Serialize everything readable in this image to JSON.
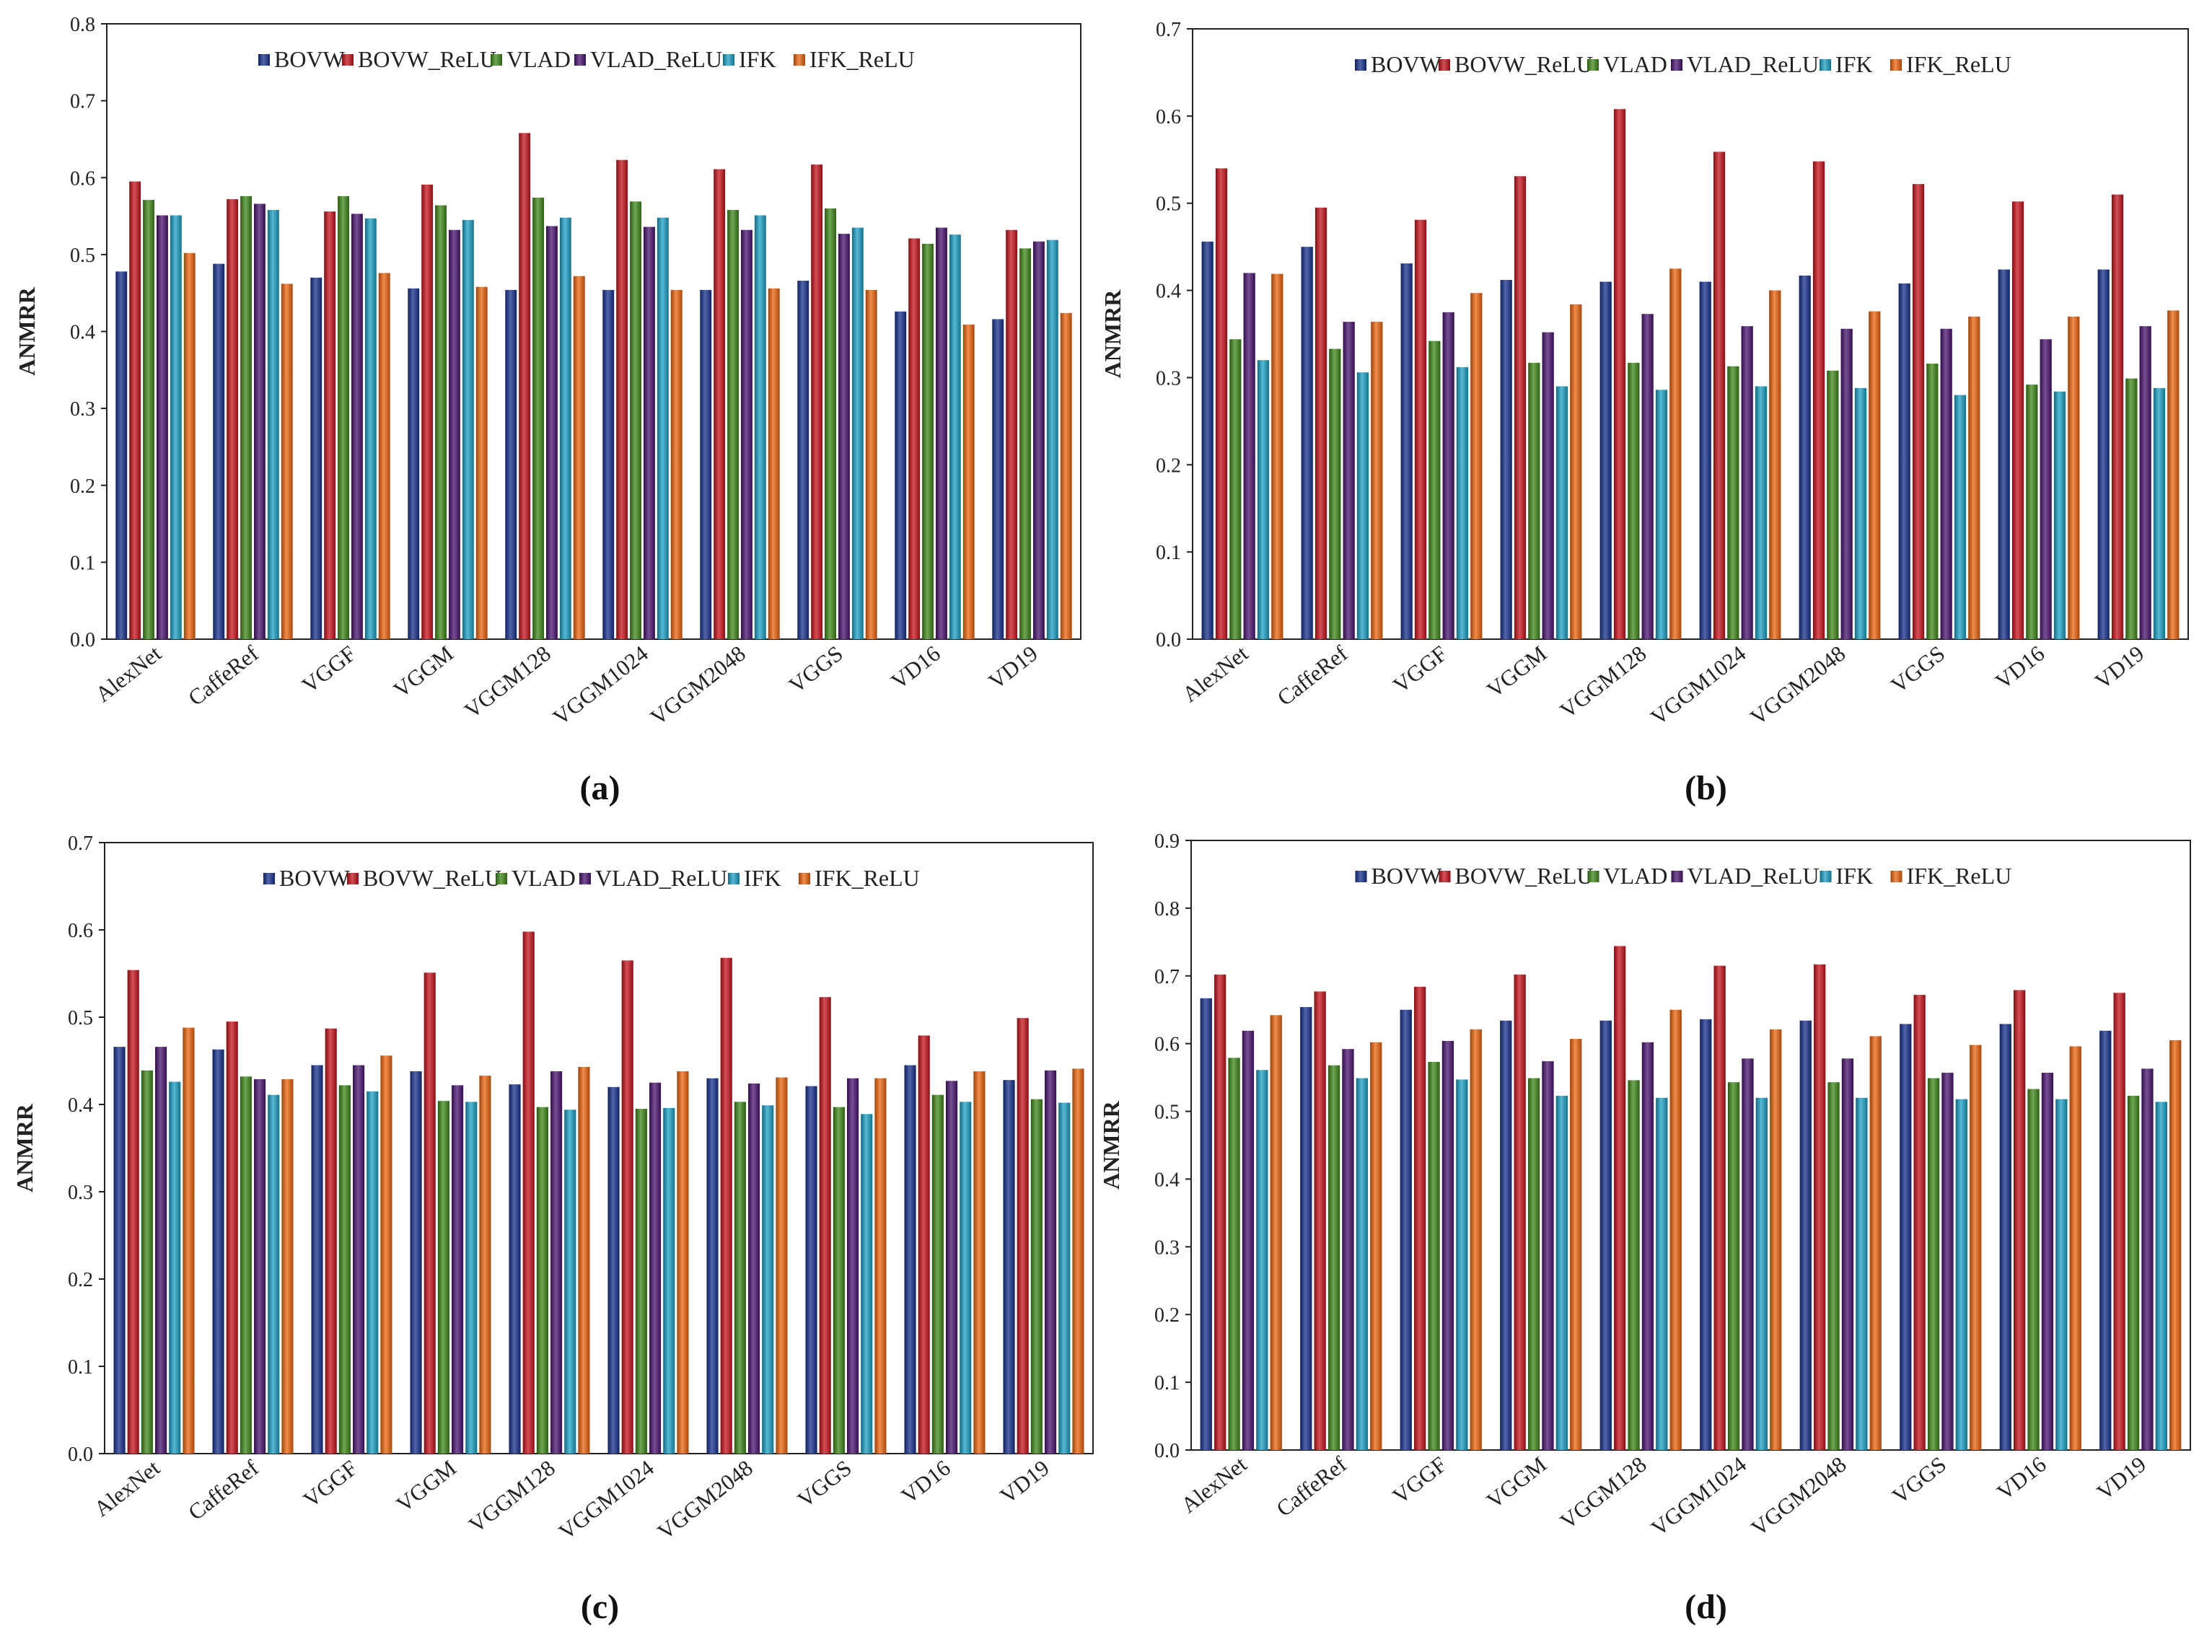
{
  "colors": {
    "BOVW": "#17318f",
    "BOVW_ReLU": "#c8141c",
    "VLAD": "#3f8a1a",
    "VLAD_ReLU": "#4a1470",
    "IFK": "#1ca3c8",
    "IFK_ReLU": "#f0650e"
  },
  "chart_data": [
    {
      "type": "bar",
      "panel_label": "(a)",
      "ylabel": "ANMRR",
      "xlabel": "",
      "ylim": [
        0,
        0.8
      ],
      "yticks": [
        "0.0",
        "0.1",
        "0.2",
        "0.3",
        "0.4",
        "0.5",
        "0.6",
        "0.7",
        "0.8"
      ],
      "legend": "top",
      "categories": [
        "AlexNet",
        "CaffeRef",
        "VGGF",
        "VGGM",
        "VGGM128",
        "VGGM1024",
        "VGGM2048",
        "VGGS",
        "VD16",
        "VD19"
      ],
      "series": [
        {
          "name": "BOVW",
          "values": [
            0.478,
            0.488,
            0.47,
            0.456,
            0.454,
            0.454,
            0.454,
            0.466,
            0.426,
            0.416
          ]
        },
        {
          "name": "BOVW_ReLU",
          "values": [
            0.595,
            0.572,
            0.556,
            0.591,
            0.658,
            0.623,
            0.611,
            0.617,
            0.521,
            0.532
          ]
        },
        {
          "name": "VLAD",
          "values": [
            0.571,
            0.576,
            0.576,
            0.564,
            0.574,
            0.569,
            0.558,
            0.56,
            0.514,
            0.508
          ]
        },
        {
          "name": "VLAD_ReLU",
          "values": [
            0.551,
            0.566,
            0.553,
            0.532,
            0.537,
            0.536,
            0.532,
            0.527,
            0.535,
            0.517
          ]
        },
        {
          "name": "IFK",
          "values": [
            0.551,
            0.558,
            0.547,
            0.545,
            0.548,
            0.548,
            0.551,
            0.535,
            0.526,
            0.519
          ]
        },
        {
          "name": "IFK_ReLU",
          "values": [
            0.502,
            0.462,
            0.476,
            0.458,
            0.472,
            0.454,
            0.456,
            0.454,
            0.409,
            0.424
          ]
        }
      ]
    },
    {
      "type": "bar",
      "panel_label": "(b)",
      "ylabel": "ANMRR",
      "xlabel": "",
      "ylim": [
        0,
        0.7
      ],
      "yticks": [
        "0.0",
        "0.1",
        "0.2",
        "0.3",
        "0.4",
        "0.5",
        "0.6",
        "0.7"
      ],
      "legend": "top",
      "categories": [
        "AlexNet",
        "CaffeRef",
        "VGGF",
        "VGGM",
        "VGGM128",
        "VGGM1024",
        "VGGM2048",
        "VGGS",
        "VD16",
        "VD19"
      ],
      "series": [
        {
          "name": "BOVW",
          "values": [
            0.456,
            0.45,
            0.431,
            0.412,
            0.41,
            0.41,
            0.417,
            0.408,
            0.424,
            0.424
          ]
        },
        {
          "name": "BOVW_ReLU",
          "values": [
            0.54,
            0.495,
            0.481,
            0.531,
            0.608,
            0.559,
            0.548,
            0.522,
            0.502,
            0.51
          ]
        },
        {
          "name": "VLAD",
          "values": [
            0.344,
            0.333,
            0.342,
            0.317,
            0.317,
            0.313,
            0.308,
            0.316,
            0.292,
            0.299
          ]
        },
        {
          "name": "VLAD_ReLU",
          "values": [
            0.42,
            0.364,
            0.375,
            0.352,
            0.373,
            0.359,
            0.356,
            0.356,
            0.344,
            0.359
          ]
        },
        {
          "name": "IFK",
          "values": [
            0.32,
            0.306,
            0.312,
            0.29,
            0.286,
            0.29,
            0.288,
            0.28,
            0.284,
            0.288
          ]
        },
        {
          "name": "IFK_ReLU",
          "values": [
            0.419,
            0.364,
            0.397,
            0.384,
            0.425,
            0.4,
            0.376,
            0.37,
            0.37,
            0.377
          ]
        }
      ]
    },
    {
      "type": "bar",
      "panel_label": "(c)",
      "ylabel": "ANMRR",
      "xlabel": "",
      "ylim": [
        0,
        0.7
      ],
      "yticks": [
        "0.0",
        "0.1",
        "0.2",
        "0.3",
        "0.4",
        "0.5",
        "0.6",
        "0.7"
      ],
      "legend": "top",
      "categories": [
        "AlexNet",
        "CaffeRef",
        "VGGF",
        "VGGM",
        "VGGM128",
        "VGGM1024",
        "VGGM2048",
        "VGGS",
        "VD16",
        "VD19"
      ],
      "series": [
        {
          "name": "BOVW",
          "values": [
            0.466,
            0.463,
            0.445,
            0.438,
            0.423,
            0.42,
            0.43,
            0.421,
            0.445,
            0.428
          ]
        },
        {
          "name": "BOVW_ReLU",
          "values": [
            0.554,
            0.495,
            0.487,
            0.551,
            0.598,
            0.565,
            0.568,
            0.523,
            0.479,
            0.499
          ]
        },
        {
          "name": "VLAD",
          "values": [
            0.439,
            0.432,
            0.422,
            0.404,
            0.397,
            0.395,
            0.403,
            0.397,
            0.411,
            0.406
          ]
        },
        {
          "name": "VLAD_ReLU",
          "values": [
            0.466,
            0.429,
            0.445,
            0.422,
            0.438,
            0.425,
            0.424,
            0.43,
            0.427,
            0.439
          ]
        },
        {
          "name": "IFK",
          "values": [
            0.426,
            0.411,
            0.415,
            0.403,
            0.394,
            0.396,
            0.399,
            0.389,
            0.403,
            0.402
          ]
        },
        {
          "name": "IFK_ReLU",
          "values": [
            0.488,
            0.429,
            0.456,
            0.433,
            0.443,
            0.438,
            0.431,
            0.43,
            0.438,
            0.441
          ]
        }
      ]
    },
    {
      "type": "bar",
      "panel_label": "(d)",
      "ylabel": "ANMRR",
      "xlabel": "",
      "ylim": [
        0,
        0.9
      ],
      "yticks": [
        "0.0",
        "0.1",
        "0.2",
        "0.3",
        "0.4",
        "0.5",
        "0.6",
        "0.7",
        "0.8",
        "0.9"
      ],
      "legend": "top",
      "categories": [
        "AlexNet",
        "CaffeRef",
        "VGGF",
        "VGGM",
        "VGGM128",
        "VGGM1024",
        "VGGM2048",
        "VGGS",
        "VD16",
        "VD19"
      ],
      "series": [
        {
          "name": "BOVW",
          "values": [
            0.667,
            0.654,
            0.65,
            0.634,
            0.634,
            0.636,
            0.634,
            0.629,
            0.629,
            0.619
          ]
        },
        {
          "name": "BOVW_ReLU",
          "values": [
            0.702,
            0.677,
            0.684,
            0.702,
            0.744,
            0.715,
            0.717,
            0.672,
            0.679,
            0.675
          ]
        },
        {
          "name": "VLAD",
          "values": [
            0.579,
            0.568,
            0.573,
            0.549,
            0.546,
            0.543,
            0.543,
            0.549,
            0.533,
            0.523
          ]
        },
        {
          "name": "VLAD_ReLU",
          "values": [
            0.619,
            0.592,
            0.604,
            0.574,
            0.602,
            0.578,
            0.578,
            0.557,
            0.557,
            0.563
          ]
        },
        {
          "name": "IFK",
          "values": [
            0.561,
            0.549,
            0.547,
            0.523,
            0.52,
            0.52,
            0.52,
            0.518,
            0.518,
            0.514
          ]
        },
        {
          "name": "IFK_ReLU",
          "values": [
            0.642,
            0.602,
            0.621,
            0.607,
            0.65,
            0.621,
            0.611,
            0.598,
            0.596,
            0.605
          ]
        }
      ]
    }
  ]
}
